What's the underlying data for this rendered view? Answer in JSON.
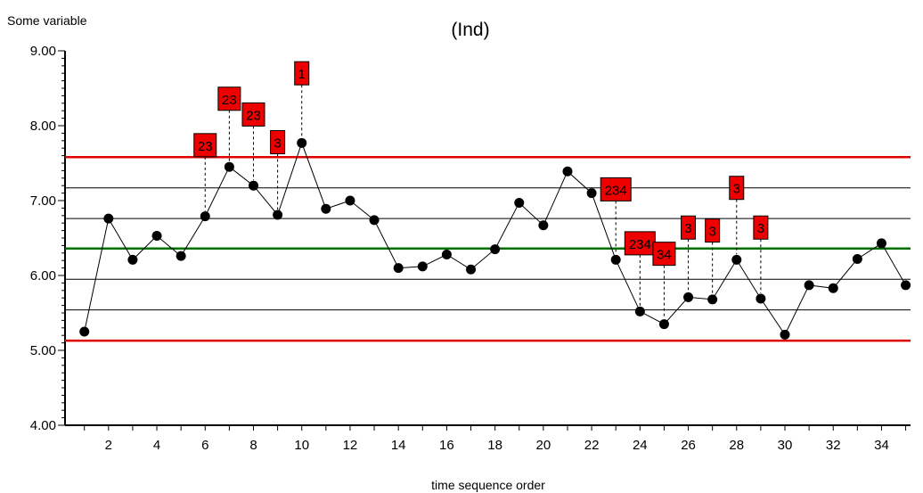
{
  "chart_data": {
    "type": "line",
    "title": "(Ind)",
    "ylabel": "Some variable",
    "xlabel": "time sequence order",
    "xlim": [
      0.2,
      35.2
    ],
    "ylim": [
      4.0,
      9.0
    ],
    "grid": false,
    "x_ticks_labeled": [
      2,
      4,
      6,
      8,
      10,
      12,
      14,
      16,
      18,
      20,
      22,
      24,
      26,
      28,
      30,
      32,
      34
    ],
    "y_ticks_labeled": [
      "4.00",
      "5.00",
      "6.00",
      "7.00",
      "8.00",
      "9.00"
    ],
    "x": [
      1,
      2,
      3,
      4,
      5,
      6,
      7,
      8,
      9,
      10,
      11,
      12,
      13,
      14,
      15,
      16,
      17,
      18,
      19,
      20,
      21,
      22,
      23,
      24,
      25,
      26,
      27,
      28,
      29,
      30,
      31,
      32,
      33,
      34,
      35
    ],
    "values": [
      5.25,
      6.76,
      6.21,
      6.53,
      6.26,
      6.79,
      7.45,
      7.2,
      6.81,
      7.77,
      6.89,
      7.0,
      6.74,
      6.1,
      6.12,
      6.28,
      6.08,
      6.35,
      6.97,
      6.67,
      7.39,
      7.1,
      6.21,
      5.52,
      5.35,
      5.71,
      5.68,
      6.21,
      5.69,
      5.21,
      5.87,
      5.83,
      6.22,
      6.43,
      5.87
    ],
    "reference_lines": [
      {
        "value": 7.58,
        "role": "upper control limit",
        "color": "#e00000"
      },
      {
        "value": 7.17,
        "role": "upper 2-sigma",
        "color": "#000000"
      },
      {
        "value": 6.76,
        "role": "upper 1-sigma",
        "color": "#000000"
      },
      {
        "value": 6.36,
        "role": "center line",
        "color": "#007000"
      },
      {
        "value": 5.95,
        "role": "lower 1-sigma",
        "color": "#000000"
      },
      {
        "value": 5.54,
        "role": "lower 2-sigma",
        "color": "#000000"
      },
      {
        "value": 5.13,
        "role": "lower control limit",
        "color": "#e00000"
      }
    ],
    "annotations": [
      {
        "x": 6,
        "label": "23",
        "box_y": 7.74
      },
      {
        "x": 7,
        "label": "23",
        "box_y": 8.36
      },
      {
        "x": 8,
        "label": "23",
        "box_y": 8.15
      },
      {
        "x": 9,
        "label": "3",
        "box_y": 7.78
      },
      {
        "x": 10,
        "label": "1",
        "box_y": 8.7
      },
      {
        "x": 23,
        "label": "234",
        "box_y": 7.15
      },
      {
        "x": 24,
        "label": "234",
        "box_y": 6.43
      },
      {
        "x": 25,
        "label": "34",
        "box_y": 6.29
      },
      {
        "x": 26,
        "label": "3",
        "box_y": 6.64
      },
      {
        "x": 27,
        "label": "3",
        "box_y": 6.6
      },
      {
        "x": 28,
        "label": "3",
        "box_y": 7.17
      },
      {
        "x": 29,
        "label": "3",
        "box_y": 6.64
      }
    ],
    "colors": {
      "series": "#000000",
      "annotation_fill": "#ee0000",
      "annotation_text": "#000000"
    }
  }
}
